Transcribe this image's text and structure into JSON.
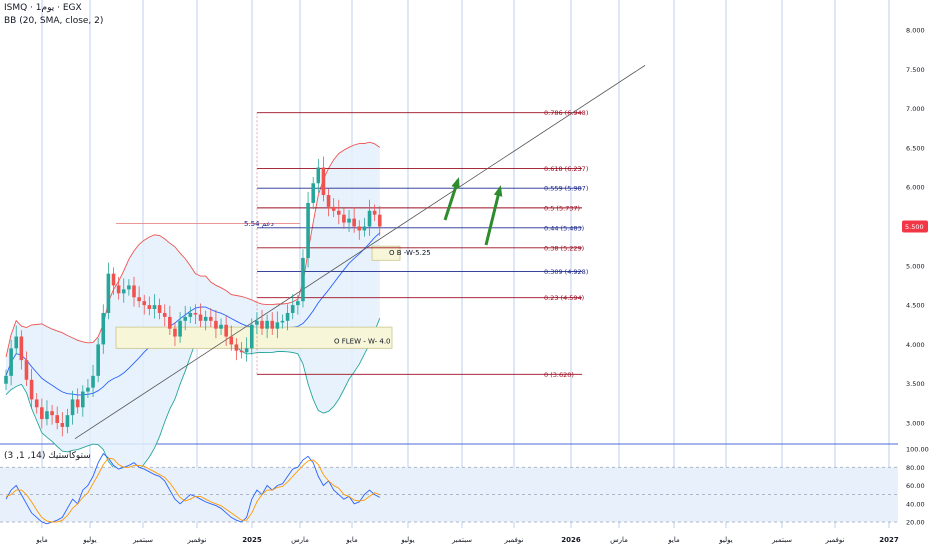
{
  "header": {
    "title": "ISMQ · 1يوم · EGX",
    "indicator": "BB (20, SMA, close, 2)",
    "oscillator_label": "ستوكاستيك (14, 1, 3)"
  },
  "price_badge": "5.500",
  "colors": {
    "bull": "#26a69a",
    "bear": "#ef5350",
    "bb_upper": "#ef5350",
    "bb_basis": "#2962ff",
    "bb_lower": "#26a69a",
    "bb_fill": "#e3f0fb",
    "fib_red": "#9c0c20",
    "fib_blue": "#1e2a8c",
    "zone_fill": "#f7f6d8",
    "zone_border": "#c9c58a",
    "arrow": "#2e8b2e",
    "stoch_k": "#2962ff",
    "stoch_d": "#ff9800",
    "stoch_band": "#e8f1fb"
  },
  "chart_data": [
    {
      "type": "candlestick",
      "title": "ISMQ · 1يوم · EGX",
      "ylim": [
        2.65,
        8.2
      ],
      "yticks": [
        "8.000",
        "7.500",
        "7.000",
        "6.500",
        "6.000",
        "5.500",
        "5.000",
        "4.500",
        "4.000",
        "3.500",
        "3.000"
      ],
      "x_labels": [
        "مايو",
        "يوليو",
        "سبتمبر",
        "نوفمبر",
        "2025",
        "مارس",
        "مايو",
        "يوليو",
        "سبتمبر",
        "نوفمبر",
        "2026",
        "مارس",
        "مايو",
        "يوليو",
        "سبتمبر",
        "نوفمبر",
        "2027"
      ],
      "fibonacci": [
        {
          "label": "0.786 (6.948)",
          "value": 6.948,
          "color": "red"
        },
        {
          "label": "0.618 (6.237)",
          "value": 6.237,
          "color": "red"
        },
        {
          "label": "0.559 (5.987)",
          "value": 5.987,
          "color": "blue"
        },
        {
          "label": "0.5 (5.737)",
          "value": 5.737,
          "color": "red"
        },
        {
          "label": "0.44 (5.483)",
          "value": 5.483,
          "color": "blue"
        },
        {
          "label": "0.38 (5.229)",
          "value": 5.229,
          "color": "red"
        },
        {
          "label": "0.309 (4.928)",
          "value": 4.928,
          "color": "blue"
        },
        {
          "label": "0.23 (4.594)",
          "value": 4.594,
          "color": "red"
        },
        {
          "label": "0 (3.620)",
          "value": 3.62,
          "color": "red"
        }
      ],
      "annotations": {
        "support_label": "دعم 5.54",
        "support_value": 5.54,
        "zone_upper_label": "O B -W-5.25",
        "zone_lower_label": "O  FLEW -  W-  4.0",
        "zone_lower_range": [
          3.95,
          4.22
        ],
        "zone_upper_range": [
          5.07,
          5.25
        ],
        "trendline": {
          "from_price": 2.8,
          "to_price": 7.55
        },
        "horizontal_line": 2.9
      },
      "closes": [
        3.6,
        3.95,
        4.1,
        3.8,
        3.55,
        3.3,
        3.2,
        3.05,
        3.15,
        3.1,
        3.0,
        2.95,
        3.1,
        3.3,
        3.2,
        3.4,
        3.45,
        3.6,
        4.0,
        4.4,
        4.9,
        4.75,
        4.65,
        4.7,
        4.75,
        4.6,
        4.55,
        4.5,
        4.45,
        4.5,
        4.4,
        4.35,
        4.2,
        4.1,
        4.3,
        4.35,
        4.4,
        4.38,
        4.3,
        4.35,
        4.3,
        4.2,
        4.25,
        4.1,
        4.0,
        3.92,
        3.9,
        3.95,
        4.25,
        4.3,
        4.2,
        4.3,
        4.2,
        4.28,
        4.3,
        4.4,
        4.5,
        4.55,
        5.1,
        5.8,
        6.05,
        6.25,
        5.9,
        5.75,
        5.7,
        5.65,
        5.55,
        5.6,
        5.5,
        5.45,
        5.5,
        5.7,
        5.65,
        5.5
      ]
    },
    {
      "type": "line",
      "title": "ستوكاستيك (14, 1, 3)",
      "ylim": [
        15,
        105
      ],
      "yticks": [
        "100.00",
        "80.00",
        "60.00",
        "40.00",
        "20.00"
      ],
      "band": [
        20,
        80
      ],
      "series": [
        {
          "values": [
            45,
            55,
            60,
            50,
            40,
            30,
            25,
            20,
            18,
            20,
            22,
            25,
            35,
            45,
            40,
            55,
            60,
            70,
            85,
            95,
            90,
            82,
            78,
            80,
            82,
            85,
            80,
            78,
            75,
            72,
            70,
            65,
            55,
            45,
            40,
            45,
            50,
            48,
            45,
            42,
            40,
            38,
            35,
            30,
            25,
            22,
            20,
            25,
            45,
            55,
            50,
            60,
            55,
            60,
            62,
            70,
            78,
            80,
            88,
            92,
            85,
            70,
            60,
            65,
            55,
            50,
            45,
            48,
            40,
            42,
            50,
            55,
            50,
            47
          ]
        },
        {
          "values": [
            48,
            50,
            55,
            55,
            50,
            42,
            33,
            25,
            21,
            20,
            20,
            22,
            27,
            35,
            40,
            47,
            52,
            62,
            72,
            83,
            90,
            89,
            83,
            80,
            80,
            82,
            82,
            81,
            78,
            75,
            72,
            69,
            63,
            55,
            47,
            43,
            45,
            48,
            48,
            45,
            42,
            40,
            38,
            34,
            30,
            26,
            22,
            22,
            30,
            42,
            50,
            55,
            55,
            58,
            59,
            64,
            70,
            76,
            82,
            87,
            88,
            83,
            72,
            65,
            60,
            57,
            50,
            48,
            44,
            43,
            44,
            48,
            52,
            50
          ]
        }
      ]
    }
  ]
}
